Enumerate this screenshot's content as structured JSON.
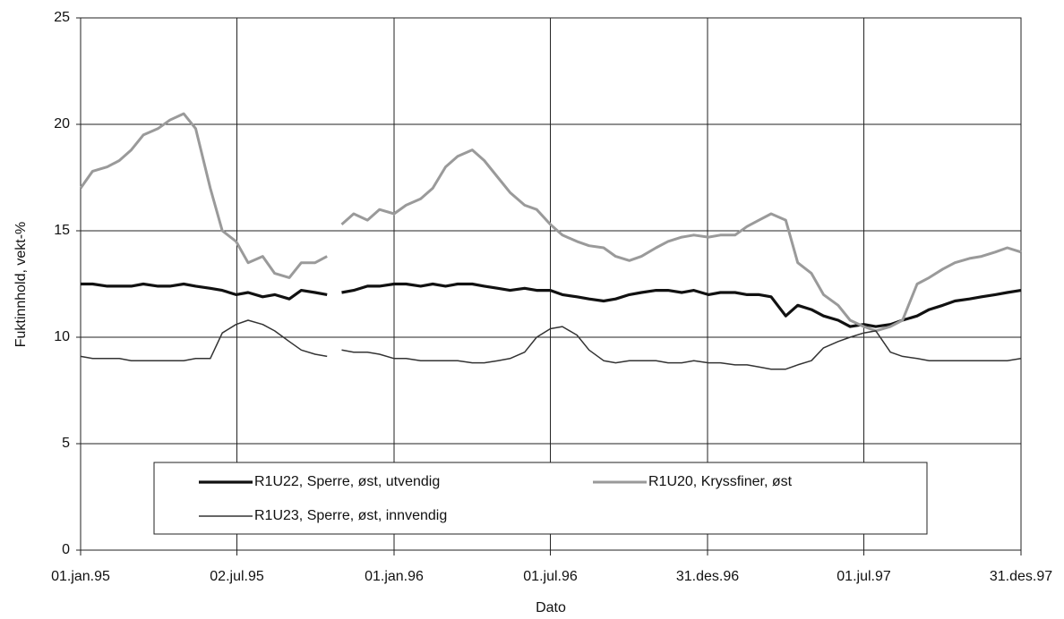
{
  "chart_data": {
    "type": "line",
    "ylabel": "Fuktinnhold, vekt-%",
    "xlabel": "Dato",
    "x": [
      "1995-01-01",
      "1995-01-15",
      "1995-02-01",
      "1995-02-15",
      "1995-03-01",
      "1995-03-15",
      "1995-04-01",
      "1995-04-15",
      "1995-05-01",
      "1995-05-15",
      "1995-06-01",
      "1995-06-15",
      "1995-07-01",
      "1995-07-15",
      "1995-08-01",
      "1995-08-15",
      "1995-09-01",
      "1995-09-15",
      "1995-10-01",
      "1995-10-15",
      "1995-10-22",
      "1995-11-01",
      "1995-11-15",
      "1995-12-01",
      "1995-12-15",
      "1996-01-01",
      "1996-01-15",
      "1996-02-01",
      "1996-02-15",
      "1996-03-01",
      "1996-03-15",
      "1996-04-01",
      "1996-04-15",
      "1996-05-01",
      "1996-05-15",
      "1996-06-01",
      "1996-06-15",
      "1996-07-01",
      "1996-07-15",
      "1996-08-01",
      "1996-08-15",
      "1996-09-01",
      "1996-09-15",
      "1996-10-01",
      "1996-10-15",
      "1996-11-01",
      "1996-11-15",
      "1996-12-01",
      "1996-12-15",
      "1997-01-01",
      "1997-01-15",
      "1997-02-01",
      "1997-02-15",
      "1997-03-01",
      "1997-03-15",
      "1997-04-01",
      "1997-04-15",
      "1997-05-01",
      "1997-05-15",
      "1997-06-01",
      "1997-06-15",
      "1997-07-01",
      "1997-07-15",
      "1997-08-01",
      "1997-08-15",
      "1997-09-01",
      "1997-09-15",
      "1997-10-01",
      "1997-10-15",
      "1997-11-01",
      "1997-11-15",
      "1997-12-01",
      "1997-12-15",
      "1997-12-31"
    ],
    "series": [
      {
        "name": "R1U22, Sperre, øst, utvendig",
        "color": "#111111",
        "width": 3.2,
        "values": [
          12.5,
          12.5,
          12.4,
          12.4,
          12.4,
          12.5,
          12.4,
          12.4,
          12.5,
          12.4,
          12.3,
          12.2,
          12,
          12.1,
          11.9,
          12,
          11.8,
          12.2,
          12.1,
          12,
          null,
          12.1,
          12.2,
          12.4,
          12.4,
          12.5,
          12.5,
          12.4,
          12.5,
          12.4,
          12.5,
          12.5,
          12.4,
          12.3,
          12.2,
          12.3,
          12.2,
          12.2,
          12,
          11.9,
          11.8,
          11.7,
          11.8,
          12,
          12.1,
          12.2,
          12.2,
          12.1,
          12.2,
          12,
          12.1,
          12.1,
          12,
          12,
          11.9,
          11,
          11.5,
          11.3,
          11,
          10.8,
          10.5,
          10.6,
          10.5,
          10.6,
          10.8,
          11,
          11.3,
          11.5,
          11.7,
          11.8,
          11.9,
          12,
          12.1,
          12.2
        ]
      },
      {
        "name": "R1U20, Kryssfiner, øst",
        "color": "#9a9a9a",
        "width": 3,
        "values": [
          17,
          17.8,
          18,
          18.3,
          18.8,
          19.5,
          19.8,
          20.2,
          20.5,
          19.8,
          17,
          15,
          14.5,
          13.5,
          13.8,
          13,
          12.8,
          13.5,
          13.5,
          13.8,
          null,
          15.3,
          15.8,
          15.5,
          16,
          15.8,
          16.2,
          16.5,
          17,
          18,
          18.5,
          18.8,
          18.3,
          17.5,
          16.8,
          16.2,
          16,
          15.3,
          14.8,
          14.5,
          14.3,
          14.2,
          13.8,
          13.6,
          13.8,
          14.2,
          14.5,
          14.7,
          14.8,
          14.7,
          14.8,
          14.8,
          15.2,
          15.5,
          15.8,
          15.5,
          13.5,
          13,
          12,
          11.5,
          10.8,
          10.5,
          10.3,
          10.5,
          10.8,
          12.5,
          12.8,
          13.2,
          13.5,
          13.7,
          13.8,
          14,
          14.2,
          14
        ]
      },
      {
        "name": "R1U23, Sperre, øst, innvendig",
        "color": "#333333",
        "width": 1.5,
        "values": [
          9.1,
          9,
          9,
          9,
          8.9,
          8.9,
          8.9,
          8.9,
          8.9,
          9,
          9,
          10.2,
          10.6,
          10.8,
          10.6,
          10.3,
          9.8,
          9.4,
          9.2,
          9.1,
          null,
          9.4,
          9.3,
          9.3,
          9.2,
          9,
          9,
          8.9,
          8.9,
          8.9,
          8.9,
          8.8,
          8.8,
          8.9,
          9,
          9.3,
          10,
          10.4,
          10.5,
          10.1,
          9.4,
          8.9,
          8.8,
          8.9,
          8.9,
          8.9,
          8.8,
          8.8,
          8.9,
          8.8,
          8.8,
          8.7,
          8.7,
          8.6,
          8.5,
          8.5,
          8.7,
          8.9,
          9.5,
          9.8,
          10,
          10.2,
          10.3,
          9.3,
          9.1,
          9,
          8.9,
          8.9,
          8.9,
          8.9,
          8.9,
          8.9,
          8.9,
          9
        ]
      }
    ],
    "xlim": [
      "1995-01-01",
      "1997-12-31"
    ],
    "xticks": [
      {
        "value": "1995-01-01",
        "label": "01.jan.95"
      },
      {
        "value": "1995-07-02",
        "label": "02.jul.95"
      },
      {
        "value": "1996-01-01",
        "label": "01.jan.96"
      },
      {
        "value": "1996-07-01",
        "label": "01.jul.96"
      },
      {
        "value": "1996-12-31",
        "label": "31.des.96"
      },
      {
        "value": "1997-07-01",
        "label": "01.jul.97"
      },
      {
        "value": "1997-12-31",
        "label": "31.des.97"
      }
    ],
    "ylim": [
      0,
      25
    ],
    "yticks": [
      0,
      5,
      10,
      15,
      20,
      25
    ],
    "grid": true,
    "legend": "lower center"
  }
}
